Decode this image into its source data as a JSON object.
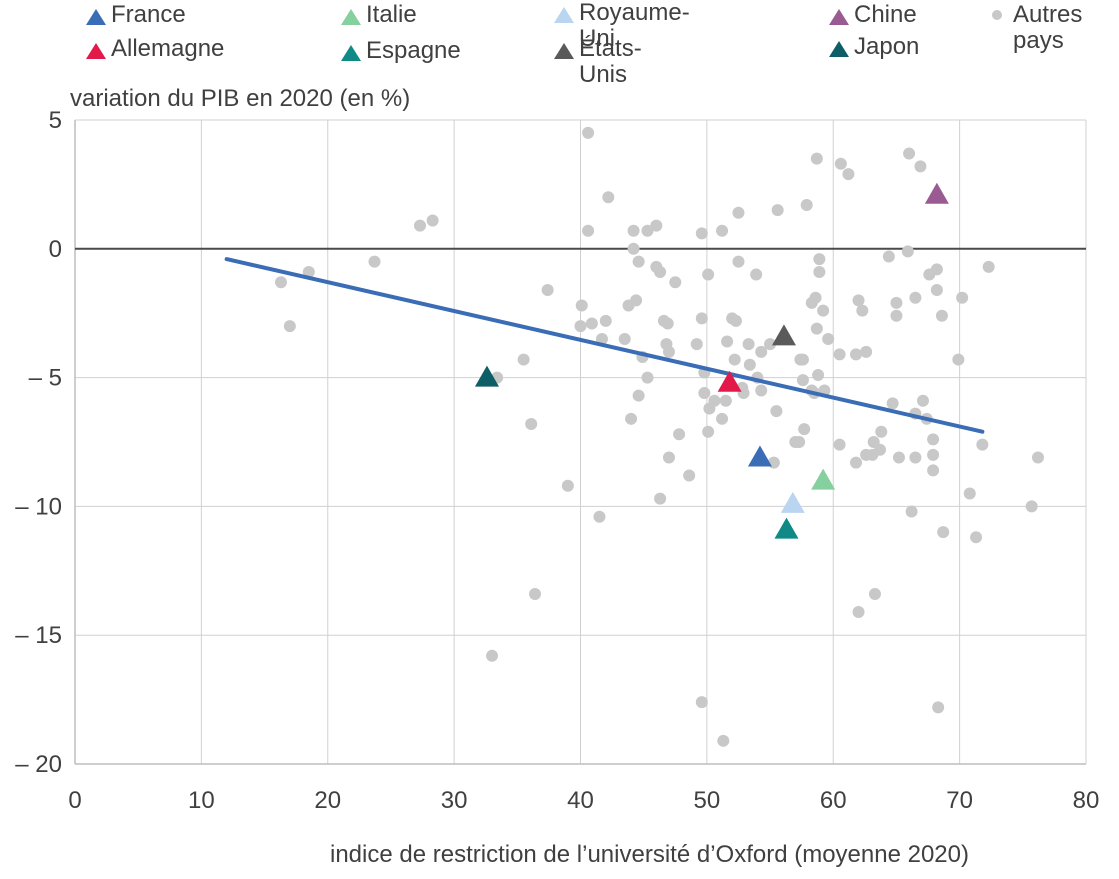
{
  "legend": [
    {
      "label": "France",
      "color": "#3a6db5",
      "marker": "triangle"
    },
    {
      "label": "Allemagne",
      "color": "#e21a4a",
      "marker": "triangle"
    },
    {
      "label": "Italie",
      "color": "#86cf9e",
      "marker": "triangle"
    },
    {
      "label": "Espagne",
      "color": "#0f8a86",
      "marker": "triangle"
    },
    {
      "label": "Royaume-Uni",
      "color": "#b9d5f0",
      "marker": "triangle"
    },
    {
      "label": "États-Unis",
      "color": "#5a5a5a",
      "marker": "triangle"
    },
    {
      "label": "Chine",
      "color": "#9a5b93",
      "marker": "triangle"
    },
    {
      "label": "Japon",
      "color": "#0d5e66",
      "marker": "triangle"
    },
    {
      "label": "Autres\npays",
      "color": "#c8c8c8",
      "marker": "dot"
    }
  ],
  "chart_data": {
    "type": "scatter",
    "ylabel": "variation du PIB en 2020 (en %)",
    "xlabel": "indice de restriction de l’université d’Oxford (moyenne 2020)",
    "xlim": [
      0,
      80
    ],
    "ylim": [
      -20,
      5
    ],
    "x_ticks": [
      0,
      10,
      20,
      30,
      40,
      50,
      60,
      70,
      80
    ],
    "y_ticks": [
      5,
      0,
      -5,
      -10,
      -15,
      -20
    ],
    "y_tick_labels": [
      "5",
      "0",
      "– 5",
      "– 10",
      "– 15",
      "– 20"
    ],
    "grid": true,
    "legend_position": "top",
    "trendline": {
      "x": [
        12,
        71.8
      ],
      "y": [
        -0.4,
        -7.1
      ],
      "color": "#3a6db5"
    },
    "highlighted": [
      {
        "name": "France",
        "x": 54.2,
        "y": -8.1
      },
      {
        "name": "Allemagne",
        "x": 51.8,
        "y": -5.2
      },
      {
        "name": "Italie",
        "x": 59.2,
        "y": -9.0
      },
      {
        "name": "Espagne",
        "x": 56.3,
        "y": -10.9
      },
      {
        "name": "Royaume-Uni",
        "x": 56.8,
        "y": -9.9
      },
      {
        "name": "États-Unis",
        "x": 56.1,
        "y": -3.4
      },
      {
        "name": "Chine",
        "x": 68.2,
        "y": 2.1
      },
      {
        "name": "Japon",
        "x": 32.6,
        "y": -5.0
      }
    ],
    "others": {
      "name": "Autres pays",
      "x": [
        40.6,
        58.7,
        60.6,
        61.2,
        66.0,
        66.9,
        42.2,
        57.9,
        52.5,
        55.6,
        27.3,
        28.3,
        40.6,
        44.2,
        45.3,
        46.0,
        49.6,
        51.2,
        44.2,
        16.3,
        18.5,
        23.7,
        17.0,
        37.4,
        40.1,
        40.0,
        40.9,
        42.0,
        41.7,
        43.5,
        43.8,
        44.4,
        44.6,
        46.0,
        46.3,
        46.6,
        46.9,
        47.5,
        49.6,
        50.1,
        52.5,
        53.9,
        58.9,
        58.9,
        58.6,
        58.3,
        59.2,
        58.7,
        59.6,
        58.3,
        57.4,
        60.5,
        62.0,
        62.3,
        61.8,
        62.6,
        64.4,
        65.0,
        65.0,
        66.5,
        65.9,
        67.6,
        68.2,
        68.2,
        68.6,
        70.2,
        72.3,
        33.4,
        35.5,
        36.1,
        39.0,
        41.5,
        36.4,
        33.0,
        44.9,
        45.3,
        46.8,
        47.0,
        44.0,
        44.6,
        47.8,
        48.6,
        47.0,
        46.3,
        49.2,
        49.8,
        49.8,
        50.2,
        50.1,
        50.6,
        51.2,
        51.5,
        51.6,
        52.0,
        52.3,
        52.2,
        52.8,
        52.9,
        53.3,
        53.4,
        54.0,
        54.3,
        55.0,
        55.5,
        55.3,
        54.3,
        57.3,
        57.6,
        57.6,
        58.5,
        58.8,
        59.3,
        57.0,
        57.7,
        60.5,
        61.8,
        62.6,
        63.2,
        63.1,
        63.7,
        63.8,
        64.7,
        65.2,
        66.5,
        66.5,
        67.1,
        67.4,
        67.9,
        67.9,
        67.9,
        66.2,
        68.7,
        69.9,
        70.8,
        71.3,
        71.8,
        75.7,
        76.2,
        62.0,
        63.3,
        68.3,
        49.6,
        51.3
      ],
      "y": [
        4.5,
        3.5,
        3.3,
        2.9,
        3.7,
        3.2,
        2.0,
        1.7,
        1.4,
        1.5,
        0.9,
        1.1,
        0.7,
        0.7,
        0.7,
        0.9,
        0.6,
        0.7,
        0.0,
        -1.3,
        -0.9,
        -0.5,
        -3.0,
        -1.6,
        -2.2,
        -3.0,
        -2.9,
        -2.8,
        -3.5,
        -3.5,
        -2.2,
        -2.0,
        -0.5,
        -0.7,
        -0.9,
        -2.8,
        -2.9,
        -1.3,
        -2.7,
        -1.0,
        -0.5,
        -1.0,
        -0.4,
        -0.9,
        -1.9,
        -2.1,
        -2.4,
        -3.1,
        -3.5,
        -5.5,
        -4.3,
        -4.1,
        -2.0,
        -2.4,
        -4.1,
        -4.0,
        -0.3,
        -2.1,
        -2.6,
        -1.9,
        -0.1,
        -1.0,
        -0.8,
        -1.6,
        -2.6,
        -1.9,
        -0.7,
        -5.0,
        -4.3,
        -6.8,
        -9.2,
        -10.4,
        -13.4,
        -15.8,
        -4.2,
        -5.0,
        -3.7,
        -4.0,
        -6.6,
        -5.7,
        -7.2,
        -8.8,
        -8.1,
        -9.7,
        -3.7,
        -4.8,
        -5.6,
        -6.2,
        -7.1,
        -5.9,
        -6.6,
        -5.9,
        -3.6,
        -2.7,
        -2.8,
        -4.3,
        -5.4,
        -5.6,
        -3.7,
        -4.5,
        -5.0,
        -4.0,
        -3.7,
        -6.3,
        -8.3,
        -5.5,
        -7.5,
        -5.1,
        -4.3,
        -5.6,
        -4.9,
        -5.5,
        -7.5,
        -7.0,
        -7.6,
        -8.3,
        -8.0,
        -7.5,
        -8.0,
        -7.8,
        -7.1,
        -6.0,
        -8.1,
        -6.4,
        -8.1,
        -5.9,
        -6.6,
        -7.4,
        -8.0,
        -8.6,
        -10.2,
        -11.0,
        -4.3,
        -9.5,
        -11.2,
        -7.6,
        -10.0,
        -8.1,
        -14.1,
        -13.4,
        -17.8,
        -17.6,
        -19.1
      ]
    }
  }
}
